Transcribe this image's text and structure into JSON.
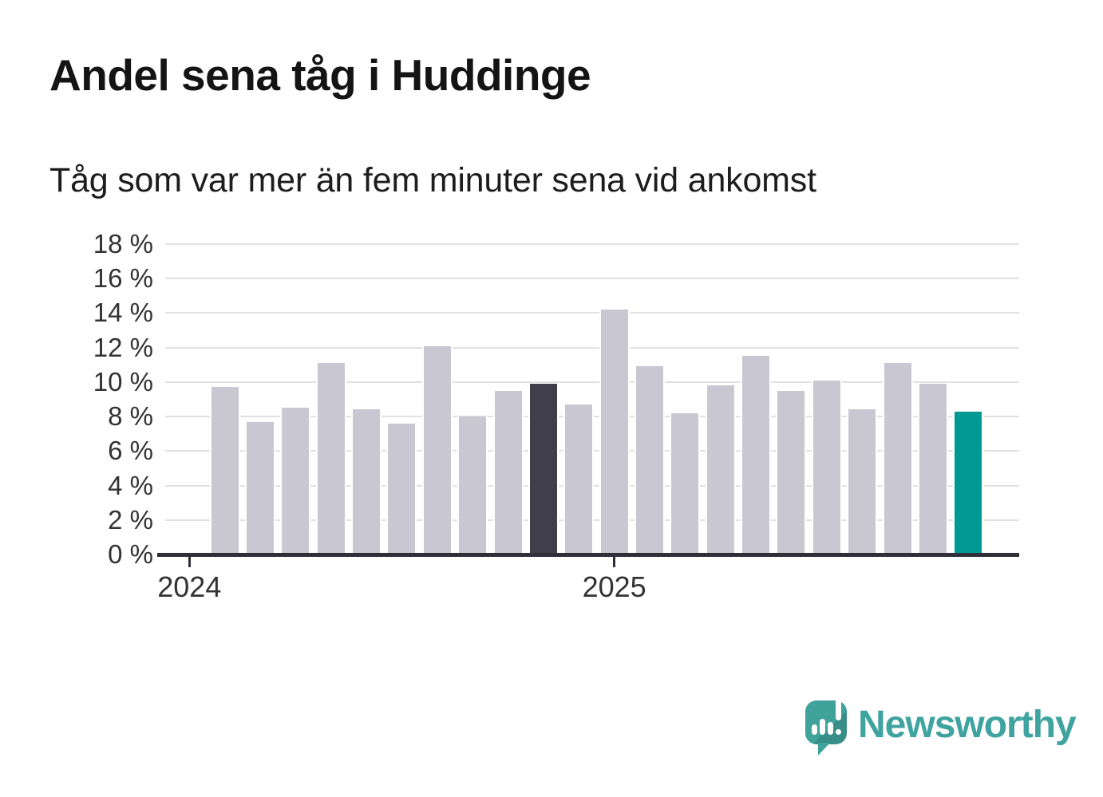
{
  "header": {
    "title": "Andel sena tåg i Huddinge",
    "subtitle": "Tåg som var mer än fem minuter sena vid ankomst"
  },
  "chart_data": {
    "type": "bar",
    "title": "Andel sena tåg i Huddinge",
    "subtitle": "Tåg som var mer än fem minuter sena vid ankomst",
    "unit": "%",
    "categories": [
      "2024-02",
      "2024-03",
      "2024-04",
      "2024-05",
      "2024-06",
      "2024-07",
      "2024-08",
      "2024-09",
      "2024-10",
      "2024-11",
      "2024-12",
      "2025-01",
      "2025-02",
      "2025-03",
      "2025-04",
      "2025-05",
      "2025-06",
      "2025-07",
      "2025-08",
      "2025-09",
      "2025-10",
      "2025-11"
    ],
    "values": [
      9.7,
      7.7,
      8.5,
      11.1,
      8.4,
      7.6,
      12.1,
      8.0,
      9.5,
      9.9,
      8.7,
      14.2,
      10.9,
      8.2,
      9.8,
      11.5,
      9.5,
      10.1,
      8.4,
      11.1,
      9.9,
      8.3
    ],
    "xlabel": "",
    "ylabel": "",
    "ylim": [
      0,
      18
    ],
    "grid": true,
    "legend": false,
    "yticks": [
      0,
      2,
      4,
      6,
      8,
      10,
      12,
      14,
      16,
      18
    ],
    "ytick_suffix": " %",
    "xticks": [
      {
        "label": "2024",
        "month_offset": 0
      },
      {
        "label": "2025",
        "month_offset": 12
      }
    ],
    "colors": {
      "default_bar": "#C9C7D1",
      "dark_highlight_bar": "#413E4B",
      "accent_highlight_bar": "#009A93",
      "axis": "#302E38",
      "gridline": "#E1E1E1",
      "text": "#333333"
    },
    "highlights": {
      "dark_index": 9,
      "accent_index": 21
    }
  },
  "footer": {
    "brand": "Newsworthy",
    "logo_icon": "newsworthy-speech-bubble-bar-chart-icon"
  }
}
